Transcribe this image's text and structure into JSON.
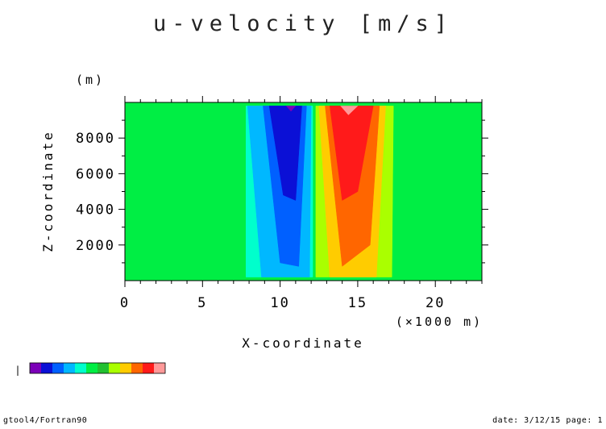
{
  "chart_data": {
    "type": "heatmap",
    "title": "u-velocity [m/s]",
    "xlabel": "X-coordinate",
    "x_unit": "(×1000 m)",
    "ylabel": "Z-coordinate",
    "y_unit": "(m)",
    "xlim": [
      0,
      23
    ],
    "ylim": [
      0,
      10000
    ],
    "x_ticks": [
      0,
      5,
      10,
      15,
      20
    ],
    "x_tick_labels": [
      "0",
      "5",
      "10",
      "15",
      "20"
    ],
    "y_ticks": [
      2000,
      4000,
      6000,
      8000
    ],
    "y_tick_labels": [
      "2000",
      "4000",
      "6000",
      "8000"
    ],
    "background_color": "#00ee44",
    "color_scale": [
      "#7b00b8",
      "#0b10d6",
      "#0060ff",
      "#00b8ff",
      "#00ffcc",
      "#00ee44",
      "#22c030",
      "#aaff00",
      "#ffcc00",
      "#ff6600",
      "#ff1a1a",
      "#ff9999"
    ],
    "levels": [
      {
        "color": "#00ffcc",
        "points": [
          [
            7.8,
            0.2
          ],
          [
            12.1,
            0.2
          ],
          [
            12.1,
            9.8
          ],
          [
            7.8,
            9.8
          ]
        ]
      },
      {
        "color": "#00b8ff",
        "points": [
          [
            8.8,
            0.2
          ],
          [
            11.9,
            0.2
          ],
          [
            12.0,
            9.8
          ],
          [
            7.9,
            9.8
          ]
        ]
      },
      {
        "color": "#0060ff",
        "points": [
          [
            10.0,
            1.0
          ],
          [
            11.2,
            0.8
          ],
          [
            11.7,
            9.8
          ],
          [
            8.9,
            9.8
          ]
        ]
      },
      {
        "color": "#0b10d6",
        "points": [
          [
            10.2,
            4.8
          ],
          [
            11.0,
            4.5
          ],
          [
            11.4,
            9.8
          ],
          [
            9.3,
            9.8
          ]
        ]
      },
      {
        "color": "#7b00b8",
        "points": [
          [
            10.4,
            9.8
          ],
          [
            10.7,
            9.5
          ],
          [
            11.0,
            9.8
          ]
        ]
      },
      {
        "color": "#aaff00",
        "points": [
          [
            12.3,
            0.2
          ],
          [
            17.2,
            0.2
          ],
          [
            17.3,
            9.8
          ],
          [
            12.3,
            9.8
          ]
        ]
      },
      {
        "color": "#ffcc00",
        "points": [
          [
            13.2,
            0.2
          ],
          [
            16.2,
            0.2
          ],
          [
            16.8,
            9.8
          ],
          [
            12.5,
            9.8
          ]
        ]
      },
      {
        "color": "#ff6600",
        "points": [
          [
            14.0,
            0.8
          ],
          [
            15.8,
            2.0
          ],
          [
            16.4,
            9.8
          ],
          [
            12.9,
            9.8
          ]
        ]
      },
      {
        "color": "#ff1a1a",
        "points": [
          [
            14.0,
            4.5
          ],
          [
            15.0,
            5.0
          ],
          [
            16.0,
            9.8
          ],
          [
            13.2,
            9.8
          ]
        ]
      },
      {
        "color": "#ff9999",
        "points": [
          [
            13.9,
            9.8
          ],
          [
            14.4,
            9.3
          ],
          [
            15.0,
            9.8
          ]
        ]
      }
    ]
  },
  "footer": {
    "left": "gtool4/Fortran90",
    "right": "date: 3/12/15 page: 1"
  },
  "legend_bar": {
    "left_mark": "|"
  }
}
